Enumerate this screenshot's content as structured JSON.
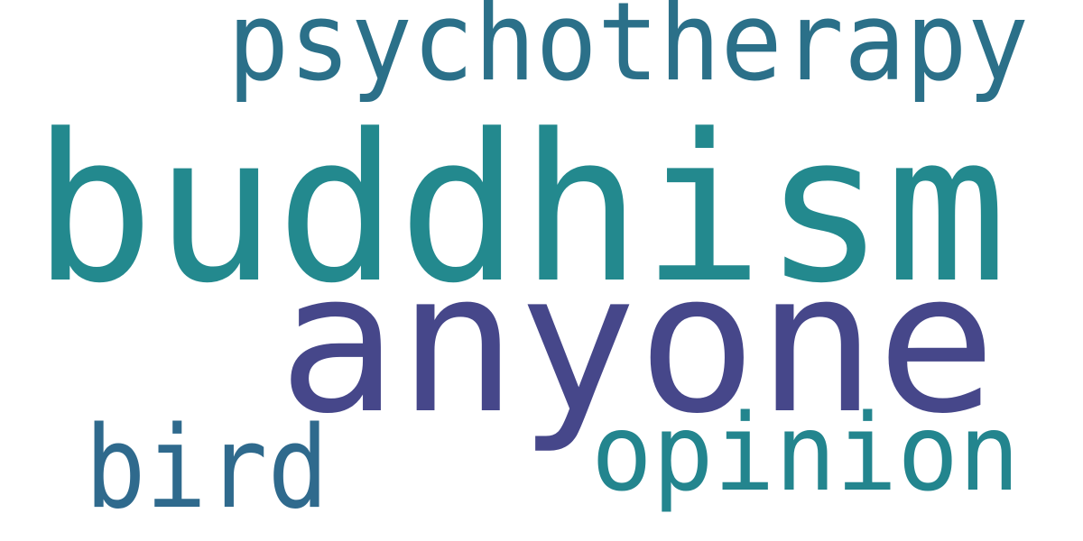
{
  "word_cloud": {
    "background_color": "#ffffff",
    "words": [
      {
        "text": "psychotherapy",
        "color": "#2b7089"
      },
      {
        "text": "buddhism",
        "color": "#23898e"
      },
      {
        "text": "anyone",
        "color": "#46478a"
      },
      {
        "text": "bird",
        "color": "#2f6a8d"
      },
      {
        "text": "opinion",
        "color": "#23858e"
      }
    ]
  }
}
